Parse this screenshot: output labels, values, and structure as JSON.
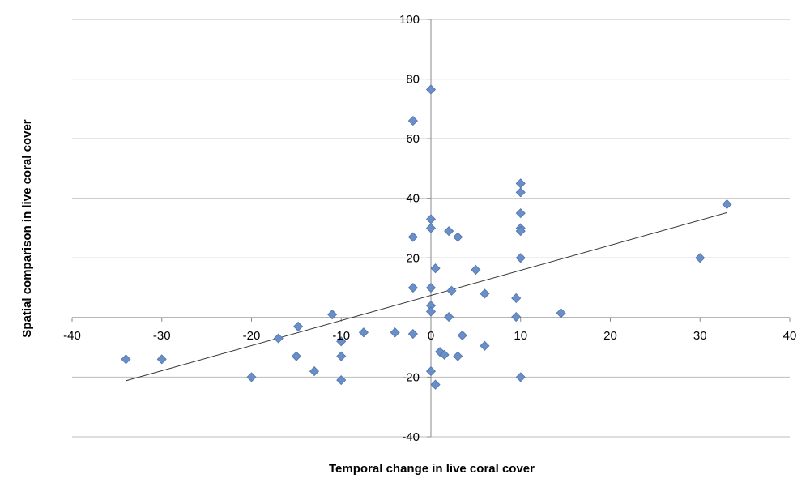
{
  "chart_data": {
    "type": "scatter",
    "title": "",
    "xlabel": "Temporal change in live coral cover",
    "ylabel": "Spatial comparison in live coral cover",
    "xlim": [
      -40,
      40
    ],
    "ylim": [
      -40,
      100
    ],
    "x_ticks": [
      -40,
      -30,
      -20,
      -10,
      0,
      10,
      20,
      30,
      40
    ],
    "y_ticks": [
      -40,
      -20,
      0,
      20,
      40,
      60,
      80,
      100
    ],
    "x_tick_labels": [
      "-40",
      "-30",
      "-20",
      "-10",
      "0",
      "10",
      "20",
      "30",
      "40"
    ],
    "y_tick_labels": [
      "-40",
      "-20",
      "0",
      "20",
      "40",
      "60",
      "80",
      "100"
    ],
    "grid": "horizontal",
    "legend": "none",
    "marker_color": "#6a8fc8",
    "marker_stroke": "#4f74ad",
    "series": [
      {
        "points": [
          [
            -34,
            -14
          ],
          [
            -30,
            -14
          ],
          [
            -20,
            -20
          ],
          [
            -17,
            -7
          ],
          [
            -15,
            -13
          ],
          [
            -14.8,
            -3
          ],
          [
            -13,
            -18
          ],
          [
            -11,
            1
          ],
          [
            -10,
            -8
          ],
          [
            -10,
            -13
          ],
          [
            -10,
            -21
          ],
          [
            -7.5,
            -5
          ],
          [
            -4,
            -5
          ],
          [
            -2,
            -5.5
          ],
          [
            -2,
            27
          ],
          [
            -2,
            66
          ],
          [
            -2,
            10
          ],
          [
            0,
            76.5
          ],
          [
            0,
            33
          ],
          [
            0,
            30
          ],
          [
            0,
            10
          ],
          [
            0,
            4
          ],
          [
            0,
            2
          ],
          [
            0,
            -18
          ],
          [
            0.5,
            16.5
          ],
          [
            0.5,
            -22.5
          ],
          [
            1,
            -11.5
          ],
          [
            1.5,
            -12.5
          ],
          [
            2,
            29
          ],
          [
            2,
            0.2
          ],
          [
            2.3,
            9
          ],
          [
            3,
            27
          ],
          [
            3,
            -13
          ],
          [
            3.5,
            -6
          ],
          [
            5,
            16
          ],
          [
            6,
            8
          ],
          [
            6,
            -9.5
          ],
          [
            9.5,
            6.5
          ],
          [
            9.5,
            0.2
          ],
          [
            10,
            45
          ],
          [
            10,
            42
          ],
          [
            10,
            35
          ],
          [
            10,
            30
          ],
          [
            10,
            29
          ],
          [
            10,
            20
          ],
          [
            10,
            -20
          ],
          [
            14.5,
            1.5
          ],
          [
            30,
            20
          ],
          [
            33,
            38
          ]
        ]
      }
    ],
    "trendline": {
      "x": [
        -34,
        33
      ],
      "y": [
        -21.2,
        35.2
      ],
      "color": "#333333"
    }
  }
}
